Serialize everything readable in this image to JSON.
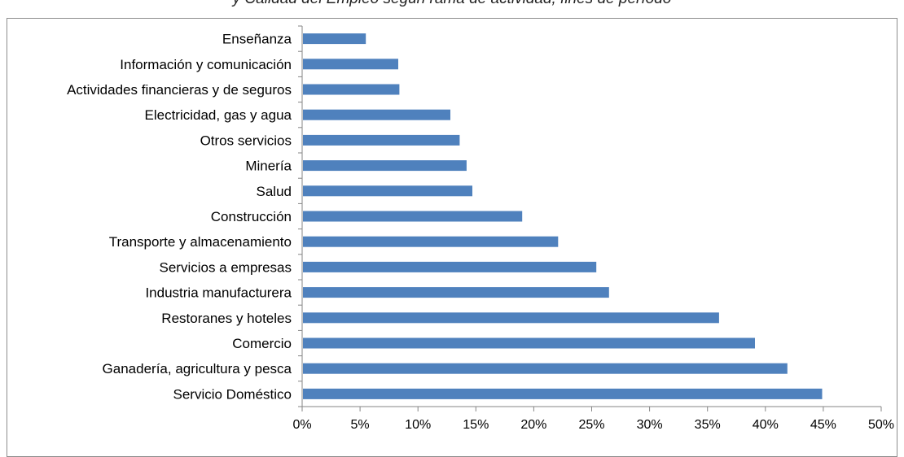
{
  "caption": {
    "text": "y Calidad del Empleo según rama de actividad, fines de período"
  },
  "chart_data": {
    "type": "bar",
    "orientation": "horizontal",
    "categories": [
      "Enseñanza",
      "Información y comunicación",
      "Actividades financieras y de seguros",
      "Electricidad, gas y agua",
      "Otros servicios",
      "Minería",
      "Salud",
      "Construcción",
      "Transporte y almacenamiento",
      "Servicios a empresas",
      "Industria manufacturera",
      "Restoranes y hoteles",
      "Comercio",
      "Ganadería, agricultura y pesca",
      "Servicio Doméstico"
    ],
    "values": [
      5.5,
      8.3,
      8.4,
      12.8,
      13.6,
      14.2,
      14.7,
      19.0,
      22.1,
      25.4,
      26.5,
      36.0,
      39.1,
      41.9,
      44.9
    ],
    "xlim": [
      0,
      50
    ],
    "xticks": [
      0,
      5,
      10,
      15,
      20,
      25,
      30,
      35,
      40,
      45,
      50
    ],
    "xtick_labels": [
      "0%",
      "5%",
      "10%",
      "15%",
      "20%",
      "25%",
      "30%",
      "35%",
      "40%",
      "45%",
      "50%"
    ],
    "bar_color": "#4f81bd",
    "grid": false,
    "legend": "none",
    "title": "",
    "xlabel": "",
    "ylabel": ""
  }
}
